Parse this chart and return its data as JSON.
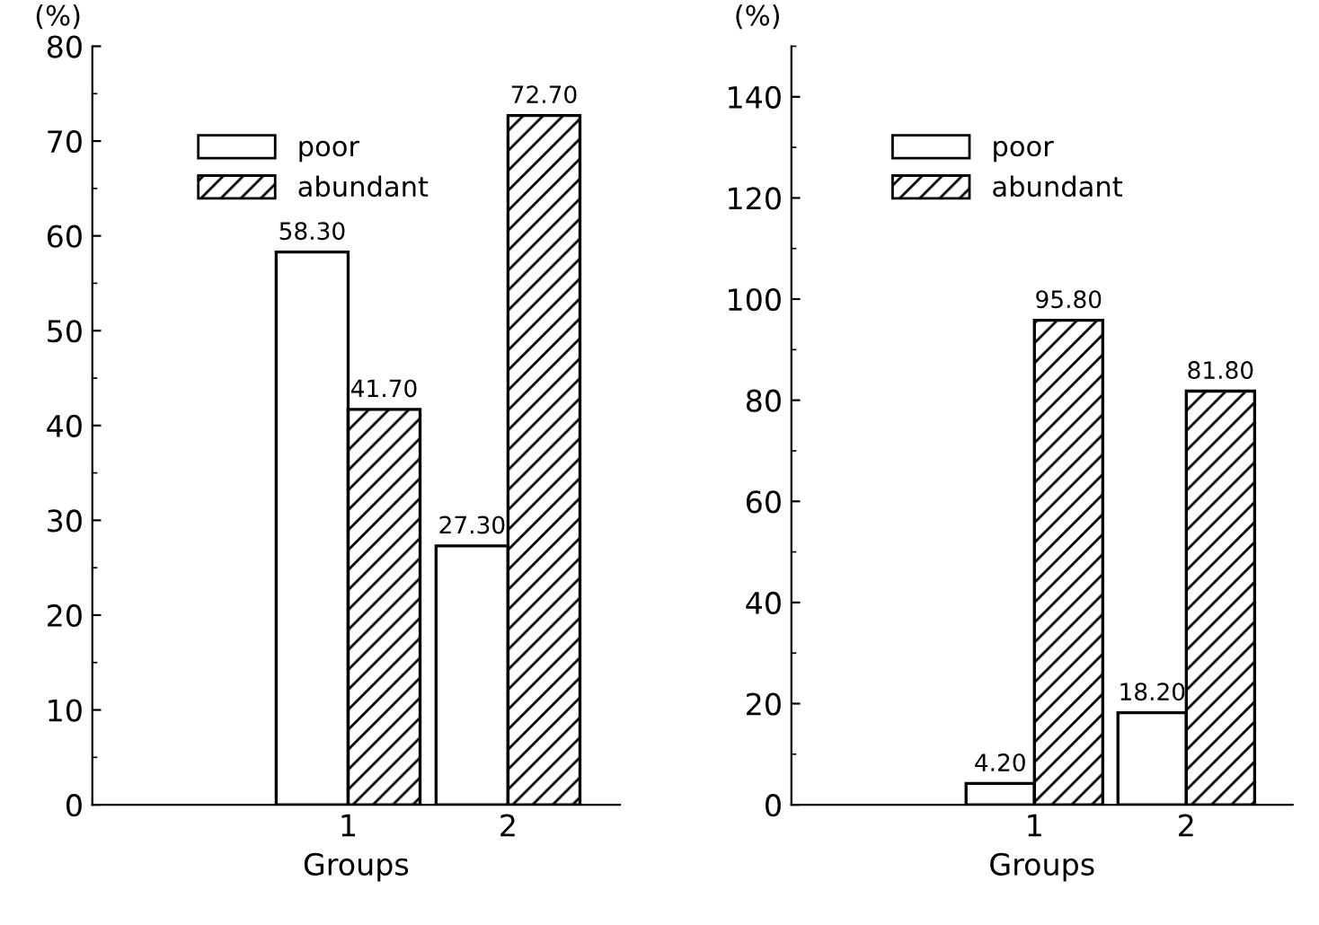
{
  "chart_data": [
    {
      "type": "bar",
      "ylabel": "(%)",
      "xlabel": "Groups",
      "categories": [
        "1",
        "2"
      ],
      "ylim": [
        0,
        80
      ],
      "yticks": [
        0,
        10,
        20,
        30,
        40,
        50,
        60,
        70,
        80
      ],
      "legend": "top left",
      "grid": false,
      "series": [
        {
          "name": "poor",
          "color": "#ffffff",
          "values": [
            58.3,
            27.3
          ],
          "value_labels": [
            "58.30",
            "27.30"
          ]
        },
        {
          "name": "abundant",
          "color": "#000000",
          "values": [
            41.7,
            72.7
          ],
          "value_labels": [
            "41.70",
            "72.70"
          ]
        }
      ]
    },
    {
      "type": "bar",
      "ylabel": "(%)",
      "xlabel": "Groups",
      "categories": [
        "1",
        "2"
      ],
      "ylim": [
        0,
        150
      ],
      "yticks": [
        0,
        20,
        40,
        60,
        80,
        100,
        120,
        140
      ],
      "legend": "top left",
      "grid": false,
      "series": [
        {
          "name": "poor",
          "color": "#ffffff",
          "values": [
            4.2,
            18.2
          ],
          "value_labels": [
            "4.20",
            "18.20"
          ]
        },
        {
          "name": "abundant",
          "color": "#000000",
          "values": [
            95.8,
            81.8
          ],
          "value_labels": [
            "95.80",
            "81.80"
          ]
        }
      ]
    }
  ]
}
